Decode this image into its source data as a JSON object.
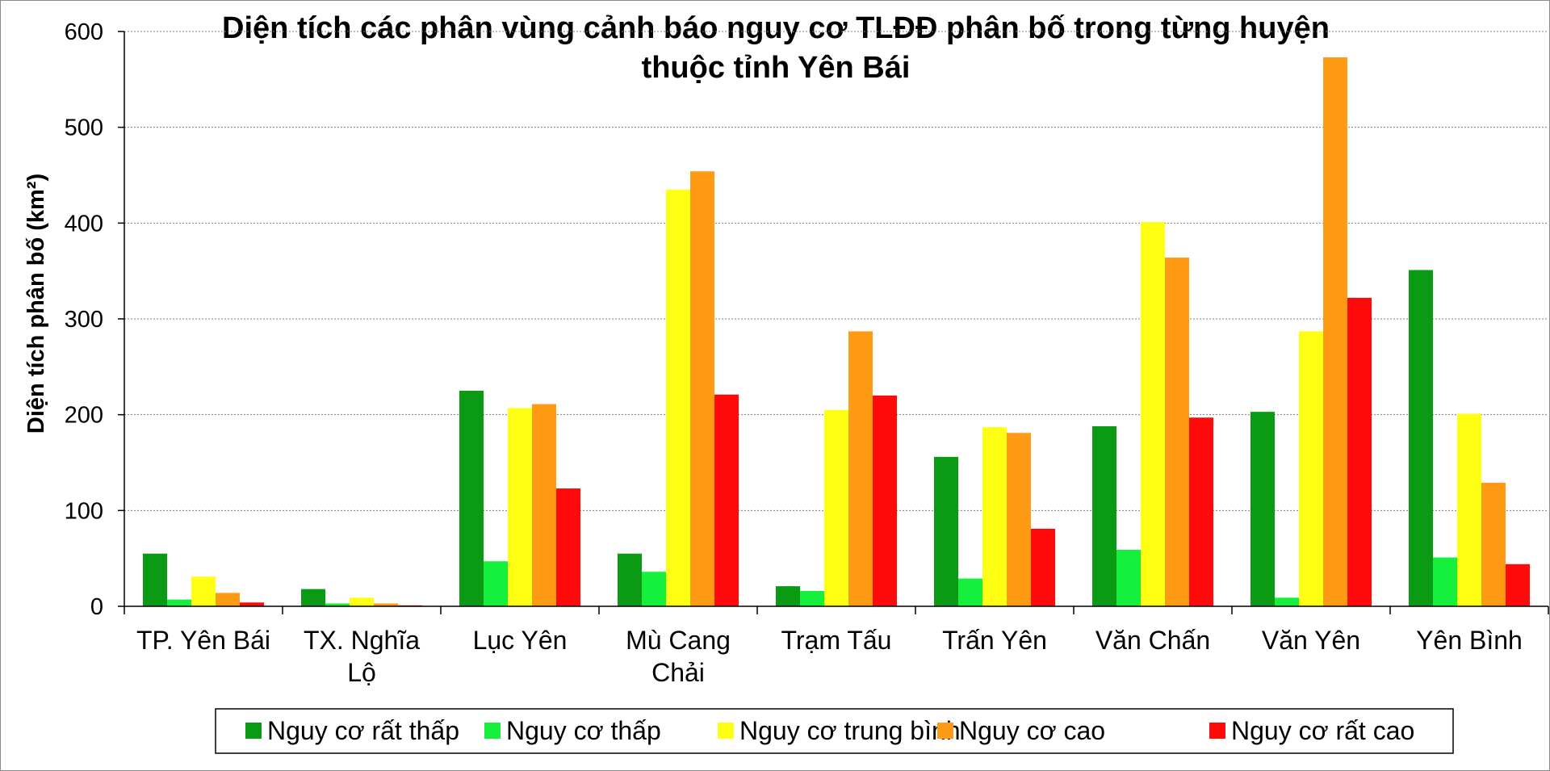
{
  "chart_data": {
    "type": "bar",
    "title": "Diện tích các phân vùng cảnh báo nguy cơ TLĐĐ phân bố trong từng huyện thuộc tỉnh Yên Bái",
    "title_lines": [
      "Diện tích các phân vùng cảnh báo nguy cơ TLĐĐ phân bố trong từng huyện",
      "thuộc tỉnh Yên Bái"
    ],
    "xlabel": "",
    "ylabel": "Diện tích phân bố (km²)",
    "ylim": [
      0,
      600
    ],
    "yticks": [
      0,
      100,
      200,
      300,
      400,
      500,
      600
    ],
    "grid": true,
    "legend_position": "bottom",
    "categories": [
      [
        "TP. Yên Bái"
      ],
      [
        "TX. Nghĩa",
        "Lộ"
      ],
      [
        "Lục Yên"
      ],
      [
        "Mù Cang",
        "Chải"
      ],
      [
        "Trạm Tấu"
      ],
      [
        "Trấn Yên"
      ],
      [
        "Văn Chấn"
      ],
      [
        "Văn Yên"
      ],
      [
        "Yên Bình"
      ]
    ],
    "series": [
      {
        "name": "Nguy cơ rất thấp",
        "color": "#0a9a14",
        "values": [
          55,
          18,
          225,
          55,
          21,
          156,
          188,
          203,
          351
        ]
      },
      {
        "name": "Nguy cơ thấp",
        "color": "#14f03c",
        "values": [
          7,
          3,
          47,
          36,
          16,
          29,
          59,
          9,
          51
        ]
      },
      {
        "name": "Nguy cơ trung bình",
        "color": "#ffff14",
        "values": [
          31,
          9,
          207,
          435,
          205,
          187,
          401,
          287,
          201
        ]
      },
      {
        "name": "Nguy cơ cao",
        "color": "#ff9a14",
        "values": [
          14,
          3,
          211,
          454,
          287,
          181,
          364,
          573,
          129
        ]
      },
      {
        "name": "Nguy cơ rất cao",
        "color": "#ff0a0a",
        "values": [
          4,
          1,
          123,
          221,
          220,
          81,
          197,
          322,
          44
        ]
      }
    ]
  }
}
